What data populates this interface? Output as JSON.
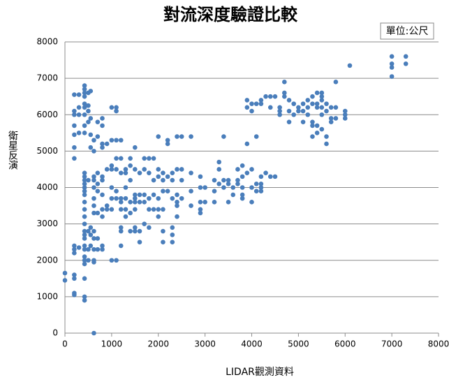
{
  "chart_data": {
    "type": "scatter",
    "title": "對流深度驗證比較",
    "unit_note": "單位:公尺",
    "x_label": "LIDAR觀測資料",
    "y_label": "衛星反演",
    "xlim": [
      0,
      8000
    ],
    "xticks": [
      0,
      1000,
      2000,
      3000,
      4000,
      5000,
      6000,
      7000,
      8000
    ],
    "ylim": [
      0,
      8000
    ],
    "yticks": [
      0,
      1000,
      2000,
      3000,
      4000,
      5000,
      6000,
      7000,
      8000
    ],
    "grid": true,
    "color": "#4a7ebb",
    "x": [
      0,
      0,
      200,
      200,
      200,
      200,
      200,
      200,
      200,
      200,
      200,
      200,
      200,
      200,
      200,
      200,
      300,
      300,
      300,
      300,
      300,
      420,
      420,
      420,
      420,
      420,
      420,
      420,
      420,
      420,
      420,
      420,
      420,
      420,
      420,
      420,
      420,
      420,
      420,
      420,
      420,
      420,
      420,
      420,
      420,
      420,
      420,
      420,
      420,
      420,
      420,
      420,
      500,
      500,
      500,
      500,
      500,
      500,
      500,
      500,
      550,
      550,
      550,
      550,
      550,
      550,
      550,
      620,
      620,
      620,
      620,
      620,
      620,
      620,
      620,
      620,
      620,
      620,
      620,
      620,
      620,
      700,
      700,
      700,
      700,
      700,
      700,
      700,
      700,
      800,
      800,
      800,
      800,
      800,
      800,
      800,
      800,
      800,
      800,
      800,
      900,
      900,
      900,
      900,
      1000,
      1000,
      1000,
      1000,
      1000,
      1000,
      1000,
      1000,
      1100,
      1100,
      1100,
      1100,
      1100,
      1100,
      1100,
      1100,
      1200,
      1200,
      1200,
      1200,
      1200,
      1200,
      1200,
      1200,
      1200,
      1300,
      1300,
      1300,
      1300,
      1300,
      1300,
      1400,
      1400,
      1400,
      1400,
      1400,
      1400,
      1500,
      1500,
      1500,
      1500,
      1500,
      1500,
      1500,
      1500,
      1600,
      1600,
      1600,
      1600,
      1600,
      1700,
      1700,
      1700,
      1700,
      1700,
      1800,
      1800,
      1800,
      1800,
      1800,
      1900,
      1900,
      1900,
      1900,
      2000,
      2000,
      2000,
      2000,
      2000,
      2000,
      2100,
      2100,
      2100,
      2100,
      2100,
      2100,
      2200,
      2200,
      2200,
      2200,
      2300,
      2300,
      2300,
      2300,
      2300,
      2300,
      2400,
      2400,
      2400,
      2400,
      2400,
      2400,
      2500,
      2500,
      2500,
      2500,
      2700,
      2700,
      2700,
      2700,
      2900,
      2900,
      2900,
      2900,
      2900,
      3000,
      3000,
      3200,
      3200,
      3200,
      3300,
      3300,
      3300,
      3400,
      3400,
      3400,
      3500,
      3500,
      3500,
      3600,
      3600,
      3700,
      3700,
      3700,
      3800,
      3800,
      3800,
      3800,
      3800,
      3900,
      3900,
      3900,
      3900,
      4000,
      4000,
      4000,
      4000,
      4000,
      4100,
      4100,
      4100,
      4100,
      4200,
      4200,
      4200,
      4200,
      4200,
      4200,
      4300,
      4300,
      4400,
      4400,
      4400,
      4500,
      4500,
      4600,
      4600,
      4600,
      4700,
      4700,
      4700,
      4800,
      4800,
      4800,
      4900,
      4900,
      5000,
      5000,
      5100,
      5100,
      5100,
      5200,
      5200,
      5200,
      5300,
      5300,
      5300,
      5300,
      5300,
      5400,
      5400,
      5400,
      5400,
      5400,
      5500,
      5500,
      5500,
      5500,
      5500,
      5500,
      5600,
      5600,
      5600,
      5600,
      5700,
      5700,
      5700,
      5800,
      5800,
      5800,
      6000,
      6000,
      6000,
      6100,
      7000,
      7000,
      7000,
      7000,
      7300,
      7300
    ],
    "values": [
      1650,
      1450,
      6550,
      6100,
      6000,
      5700,
      5450,
      5100,
      4800,
      2400,
      2300,
      2200,
      1600,
      1500,
      1100,
      1050,
      6550,
      6200,
      6000,
      5500,
      2350,
      6800,
      6700,
      6600,
      6500,
      6300,
      6200,
      6000,
      5700,
      5500,
      4400,
      4300,
      4200,
      4100,
      4000,
      3900,
      3800,
      3600,
      3400,
      3200,
      3000,
      2800,
      2700,
      2600,
      2400,
      2300,
      2100,
      2000,
      1900,
      1500,
      1000,
      900,
      6600,
      6250,
      6100,
      5800,
      4200,
      2800,
      2300,
      2000,
      6650,
      5900,
      5450,
      5100,
      2900,
      2700,
      2400,
      5300,
      5000,
      4300,
      4200,
      4000,
      3700,
      3500,
      3300,
      2800,
      2600,
      2300,
      2000,
      1950,
      0,
      5800,
      5400,
      4400,
      4100,
      3900,
      3300,
      2600,
      2300,
      5900,
      5700,
      5200,
      5100,
      4300,
      4200,
      3800,
      3400,
      3200,
      2400,
      2300,
      5200,
      4500,
      3500,
      3400,
      6200,
      5300,
      4600,
      4500,
      4000,
      3700,
      3400,
      2000,
      6200,
      6100,
      5300,
      4800,
      4500,
      3900,
      3700,
      2000,
      5300,
      4800,
      4400,
      3700,
      3600,
      3400,
      2900,
      2400,
      2800,
      4500,
      4400,
      4000,
      3700,
      3400,
      3200,
      4800,
      4600,
      4200,
      3600,
      3300,
      2800,
      5100,
      4500,
      3800,
      3700,
      3600,
      3400,
      2900,
      2800,
      4400,
      3800,
      3600,
      2800,
      2500,
      4800,
      4500,
      3800,
      3600,
      3000,
      4800,
      4400,
      3700,
      3400,
      2900,
      4800,
      4200,
      3800,
      3400,
      5400,
      4500,
      4300,
      3700,
      3400,
      3200,
      4400,
      4200,
      3900,
      3400,
      2800,
      2500,
      5300,
      5200,
      4300,
      3900,
      4400,
      4200,
      3700,
      2900,
      2700,
      2500,
      5400,
      4500,
      3800,
      3600,
      3500,
      3200,
      5400,
      4500,
      4200,
      3700,
      5400,
      4400,
      3900,
      3500,
      4300,
      4000,
      3600,
      3400,
      3300,
      4000,
      3600,
      4200,
      3900,
      3600,
      4700,
      4500,
      4100,
      5400,
      4200,
      4000,
      4200,
      4100,
      3600,
      4000,
      3800,
      4500,
      4200,
      4100,
      4600,
      4300,
      4000,
      3800,
      3700,
      6400,
      6200,
      5200,
      4400,
      6300,
      6100,
      4500,
      4000,
      3600,
      6300,
      5400,
      4100,
      3900,
      6400,
      6300,
      4300,
      4100,
      4000,
      3900,
      6500,
      4400,
      6500,
      6200,
      4300,
      6500,
      4300,
      6200,
      6100,
      6000,
      6900,
      6600,
      6500,
      6400,
      6100,
      5800,
      6300,
      6000,
      6200,
      6100,
      6300,
      6100,
      5800,
      6400,
      6200,
      6000,
      6500,
      6300,
      5800,
      5700,
      5400,
      6600,
      6300,
      6200,
      5700,
      5500,
      6600,
      6500,
      6400,
      6200,
      6000,
      5600,
      6300,
      6100,
      5400,
      5200,
      6200,
      5900,
      5800,
      6900,
      6200,
      5900,
      6100,
      6000,
      5900,
      7350,
      7600,
      7400,
      7300,
      7050,
      7600,
      7400
    ]
  }
}
